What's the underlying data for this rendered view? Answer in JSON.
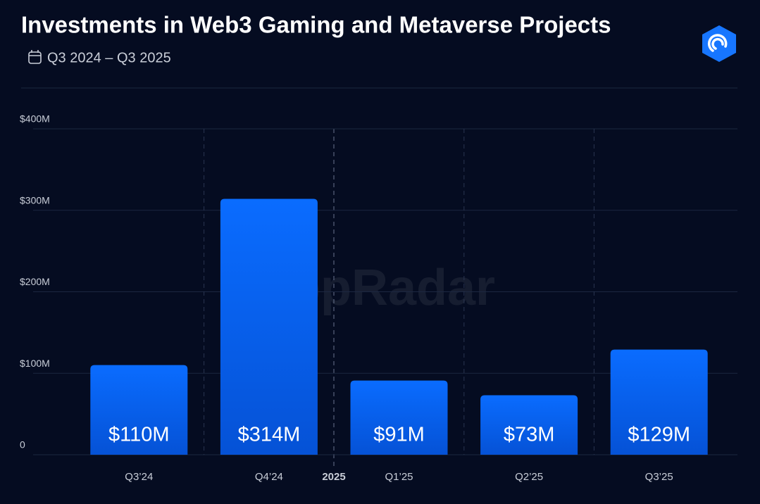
{
  "chart_data": {
    "type": "bar",
    "title": "Investments in Web3 Gaming and Metaverse Projects",
    "subtitle": "Q3 2024 – Q3 2025",
    "watermark": "appRadar",
    "year_marker": "2025",
    "categories": [
      "Q3’24",
      "Q4’24",
      "Q1’25",
      "Q2’25",
      "Q3’25"
    ],
    "values": [
      110,
      314,
      91,
      73,
      129
    ],
    "value_labels": [
      "$110M",
      "$314M",
      "$91M",
      "$73M",
      "$129M"
    ],
    "color": "#0a6cff",
    "ylim": [
      0,
      400
    ],
    "yticks": [
      0,
      {
        "value": 100,
        "label": "$100M"
      },
      {
        "value": 200,
        "label": "$200M"
      },
      {
        "value": 300,
        "label": "$300M"
      },
      {
        "value": 400,
        "label": "$400M"
      }
    ],
    "grid": true
  }
}
